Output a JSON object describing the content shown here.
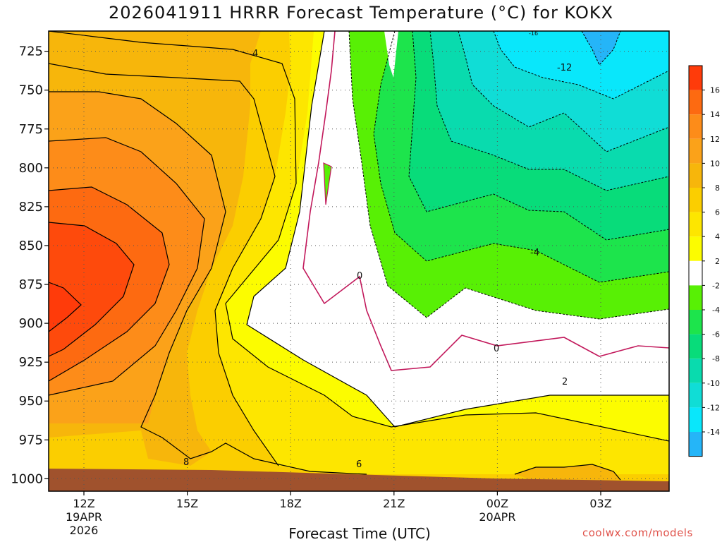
{
  "chart_data": {
    "type": "contour",
    "title": "2026041911 HRRR Forecast Temperature (°C) for KOKX",
    "xlabel": "Forecast Time (UTC)",
    "ylabel": "",
    "credit": "coolwx.com/models",
    "y_axis": {
      "ticks": [
        "725",
        "750",
        "775",
        "800",
        "825",
        "850",
        "875",
        "900",
        "925",
        "950",
        "975",
        "1000"
      ],
      "range_hpa": [
        712,
        1008
      ]
    },
    "x_axis": {
      "ticks": [
        {
          "label": "12Z",
          "sub": [
            "19APR",
            "2026"
          ]
        },
        {
          "label": "15Z",
          "sub": []
        },
        {
          "label": "18Z",
          "sub": []
        },
        {
          "label": "21Z",
          "sub": []
        },
        {
          "label": "00Z",
          "sub": [
            "20APR"
          ]
        },
        {
          "label": "03Z",
          "sub": []
        }
      ]
    },
    "colorbar": {
      "labels": [
        "16",
        "14",
        "12",
        "10",
        "8",
        "6",
        "4",
        "2",
        "-2",
        "-4",
        "-6",
        "-8",
        "-10",
        "-12",
        "-14"
      ],
      "colors": [
        "#ff3b0a",
        "#fd6a11",
        "#fd8c19",
        "#fba219",
        "#f7b60b",
        "#fbce00",
        "#fde600",
        "#fcfc00",
        "#ffffff",
        "#58f005",
        "#1de44c",
        "#08dc7a",
        "#09dbae",
        "#10ddd6",
        "#09e7fb",
        "#25b5f8"
      ]
    },
    "contour_labels": [
      "4",
      "-12",
      "0",
      "-4",
      "0",
      "2",
      "8",
      "6",
      "-16"
    ],
    "ground_color": "#a0522d",
    "grid": true
  }
}
